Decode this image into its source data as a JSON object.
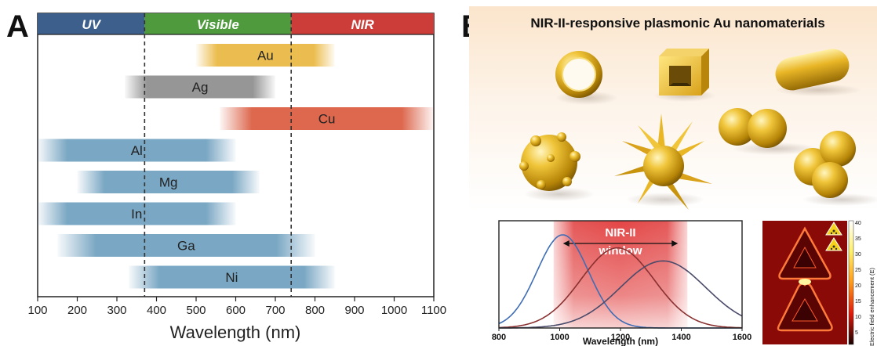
{
  "panelA": {
    "letter": "A",
    "regions": [
      {
        "label": "UV",
        "from": 100,
        "to": 370,
        "color": "#3c5f8c"
      },
      {
        "label": "Visible",
        "from": 370,
        "to": 740,
        "color": "#4e9a3c"
      },
      {
        "label": "NIR",
        "from": 740,
        "to": 1100,
        "color": "#cc3d3a"
      }
    ],
    "xaxis_label": "Wavelength (nm)",
    "xticks": [
      100,
      200,
      300,
      400,
      500,
      600,
      700,
      800,
      900,
      1000,
      1100
    ],
    "boundaries": [
      370,
      740
    ]
  },
  "chart_data": [
    {
      "type": "bar",
      "subtype": "horizontal-range",
      "title": "",
      "xlabel": "Wavelength (nm)",
      "xlim": [
        100,
        1100
      ],
      "categories": [
        "Au",
        "Ag",
        "Cu",
        "Al",
        "Mg",
        "In",
        "Ga",
        "Ni"
      ],
      "ranges": [
        {
          "name": "Au",
          "from": 500,
          "to": 850,
          "color": "#e9b63c"
        },
        {
          "name": "Ag",
          "from": 320,
          "to": 700,
          "color": "#8a8a8a"
        },
        {
          "name": "Cu",
          "from": 560,
          "to": 1100,
          "color": "#d9573a"
        },
        {
          "name": "Al",
          "from": 100,
          "to": 600,
          "color": "#6b9dbd"
        },
        {
          "name": "Mg",
          "from": 200,
          "to": 660,
          "color": "#6b9dbd"
        },
        {
          "name": "In",
          "from": 100,
          "to": 600,
          "color": "#6b9dbd"
        },
        {
          "name": "Ga",
          "from": 150,
          "to": 800,
          "color": "#6b9dbd"
        },
        {
          "name": "Ni",
          "from": 330,
          "to": 850,
          "color": "#6b9dbd"
        }
      ]
    },
    {
      "type": "line",
      "title": "",
      "xlabel": "Wavelength (nm)",
      "xlim": [
        800,
        1600
      ],
      "xticks": [
        800,
        1000,
        1200,
        1400,
        1600
      ],
      "series": [
        {
          "color": "#3e6db5",
          "peak": 1010,
          "width": 85,
          "amplitude": 1.0
        },
        {
          "color": "#8a3030",
          "peak": 1190,
          "width": 120,
          "amplitude": 0.86
        },
        {
          "color": "#4a4a6a",
          "peak": 1340,
          "width": 140,
          "amplitude": 0.72
        }
      ],
      "window": {
        "from": 980,
        "to": 1420,
        "label_line1": "NIR-II",
        "label_line2": "window"
      }
    }
  ],
  "panelB": {
    "letter": "B",
    "title": "NIR-II-responsive plasmonic Au nanomaterials",
    "colorbar": {
      "ticks": [
        40,
        35,
        30,
        25,
        20,
        15,
        10,
        5
      ],
      "label": "Electric field enhancement (E)"
    }
  }
}
